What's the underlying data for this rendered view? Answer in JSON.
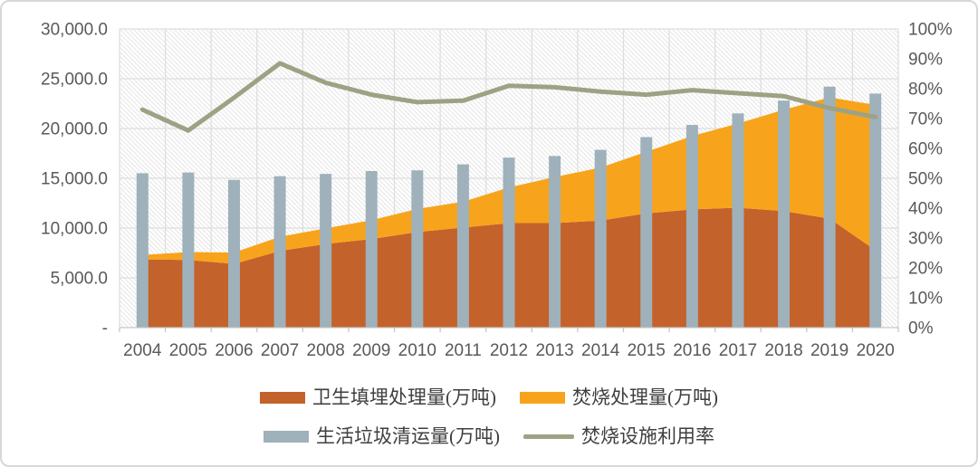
{
  "chart_data": {
    "type": "combo",
    "categories": [
      "2004",
      "2005",
      "2006",
      "2007",
      "2008",
      "2009",
      "2010",
      "2011",
      "2012",
      "2013",
      "2014",
      "2015",
      "2016",
      "2017",
      "2018",
      "2019",
      "2020"
    ],
    "series": [
      {
        "name": "卫生填埋处理量(万吨)",
        "type": "area",
        "stack": "treatment",
        "axis": "left",
        "color": "#C4622B",
        "values": [
          6850,
          6800,
          6400,
          7700,
          8400,
          8900,
          9600,
          10050,
          10500,
          10500,
          10750,
          11480,
          11870,
          12040,
          11700,
          10950,
          7770
        ]
      },
      {
        "name": "焚烧处理量(万吨)",
        "type": "area",
        "stack": "treatment",
        "axis": "left",
        "color": "#F7A41C",
        "values": [
          450,
          790,
          1140,
          1430,
          1570,
          1900,
          2320,
          2600,
          3580,
          4630,
          5330,
          6180,
          7380,
          8460,
          10190,
          12170,
          14610
        ]
      },
      {
        "name": "生活垃圾清运量(万吨)",
        "type": "bar",
        "axis": "left",
        "color": "#9FB1BA",
        "values": [
          15510,
          15580,
          14840,
          15210,
          15440,
          15730,
          15800,
          16400,
          17080,
          17240,
          17860,
          19140,
          20360,
          21520,
          22800,
          24210,
          23510
        ]
      },
      {
        "name": "焚烧设施利用率",
        "type": "line",
        "axis": "right",
        "color": "#9EA284",
        "values": [
          73,
          66,
          77,
          88.5,
          82,
          78,
          75.5,
          76,
          81,
          80.5,
          79,
          78,
          79.5,
          78.5,
          77.5,
          73.5,
          70.5
        ]
      }
    ],
    "left_axis": {
      "min": 0,
      "max": 30000,
      "step": 5000,
      "tick_labels": [
        "30,000.0",
        "25,000.0",
        "20,000.0",
        "15,000.0",
        "10,000.0",
        "5,000.0",
        "-"
      ]
    },
    "right_axis": {
      "min": 0,
      "max": 100,
      "step": 10,
      "tick_labels": [
        "100%",
        "90%",
        "80%",
        "70%",
        "60%",
        "50%",
        "40%",
        "30%",
        "20%",
        "10%",
        "0%"
      ]
    },
    "grid": true,
    "legend_position": "bottom"
  },
  "colors": {
    "grid": "#DEDEDE",
    "axis_line": "#C6C6C6",
    "hatch": "#E9E9E9",
    "axis_text": "#595959",
    "legend_text": "#3F3F3F",
    "card_border": "#D8D8D8"
  }
}
